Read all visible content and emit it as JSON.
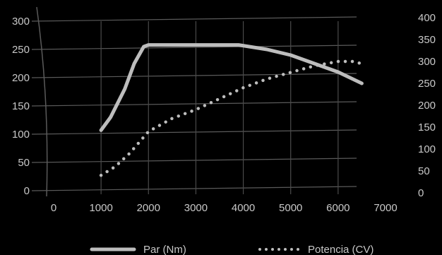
{
  "chart_data": {
    "type": "line",
    "x_ticks": [
      0,
      1000,
      2000,
      3000,
      4000,
      5000,
      6000,
      7000
    ],
    "y_left_ticks": [
      0,
      50,
      100,
      150,
      200,
      250,
      300
    ],
    "y_right_ticks": [
      0,
      50,
      100,
      150,
      200,
      250,
      300,
      350,
      400
    ],
    "xlim": [
      0,
      7000
    ],
    "ylim_left": [
      0,
      300
    ],
    "ylim_right": [
      0,
      400
    ],
    "grid": true,
    "legend_position": "bottom-center",
    "series": [
      {
        "name": "Par (Nm)",
        "axis": "left",
        "style": "solid",
        "color": "#bdbdbd",
        "x": [
          1000,
          1200,
          1500,
          1700,
          1900,
          2000,
          2200,
          3000,
          3900,
          4500,
          5000,
          5500,
          6000,
          6500
        ],
        "y": [
          107,
          130,
          180,
          225,
          255,
          258,
          258,
          258,
          258,
          250,
          240,
          225,
          210,
          190
        ]
      },
      {
        "name": "Potencia (CV)",
        "axis": "right",
        "style": "dotted",
        "color": "#bdbdbd",
        "x": [
          1000,
          1300,
          1600,
          1800,
          2000,
          2500,
          3000,
          3500,
          4000,
          4500,
          5000,
          5500,
          6000,
          6300,
          6500
        ],
        "y": [
          40,
          60,
          90,
          115,
          140,
          170,
          190,
          215,
          240,
          260,
          275,
          290,
          300,
          300,
          295
        ]
      }
    ]
  }
}
